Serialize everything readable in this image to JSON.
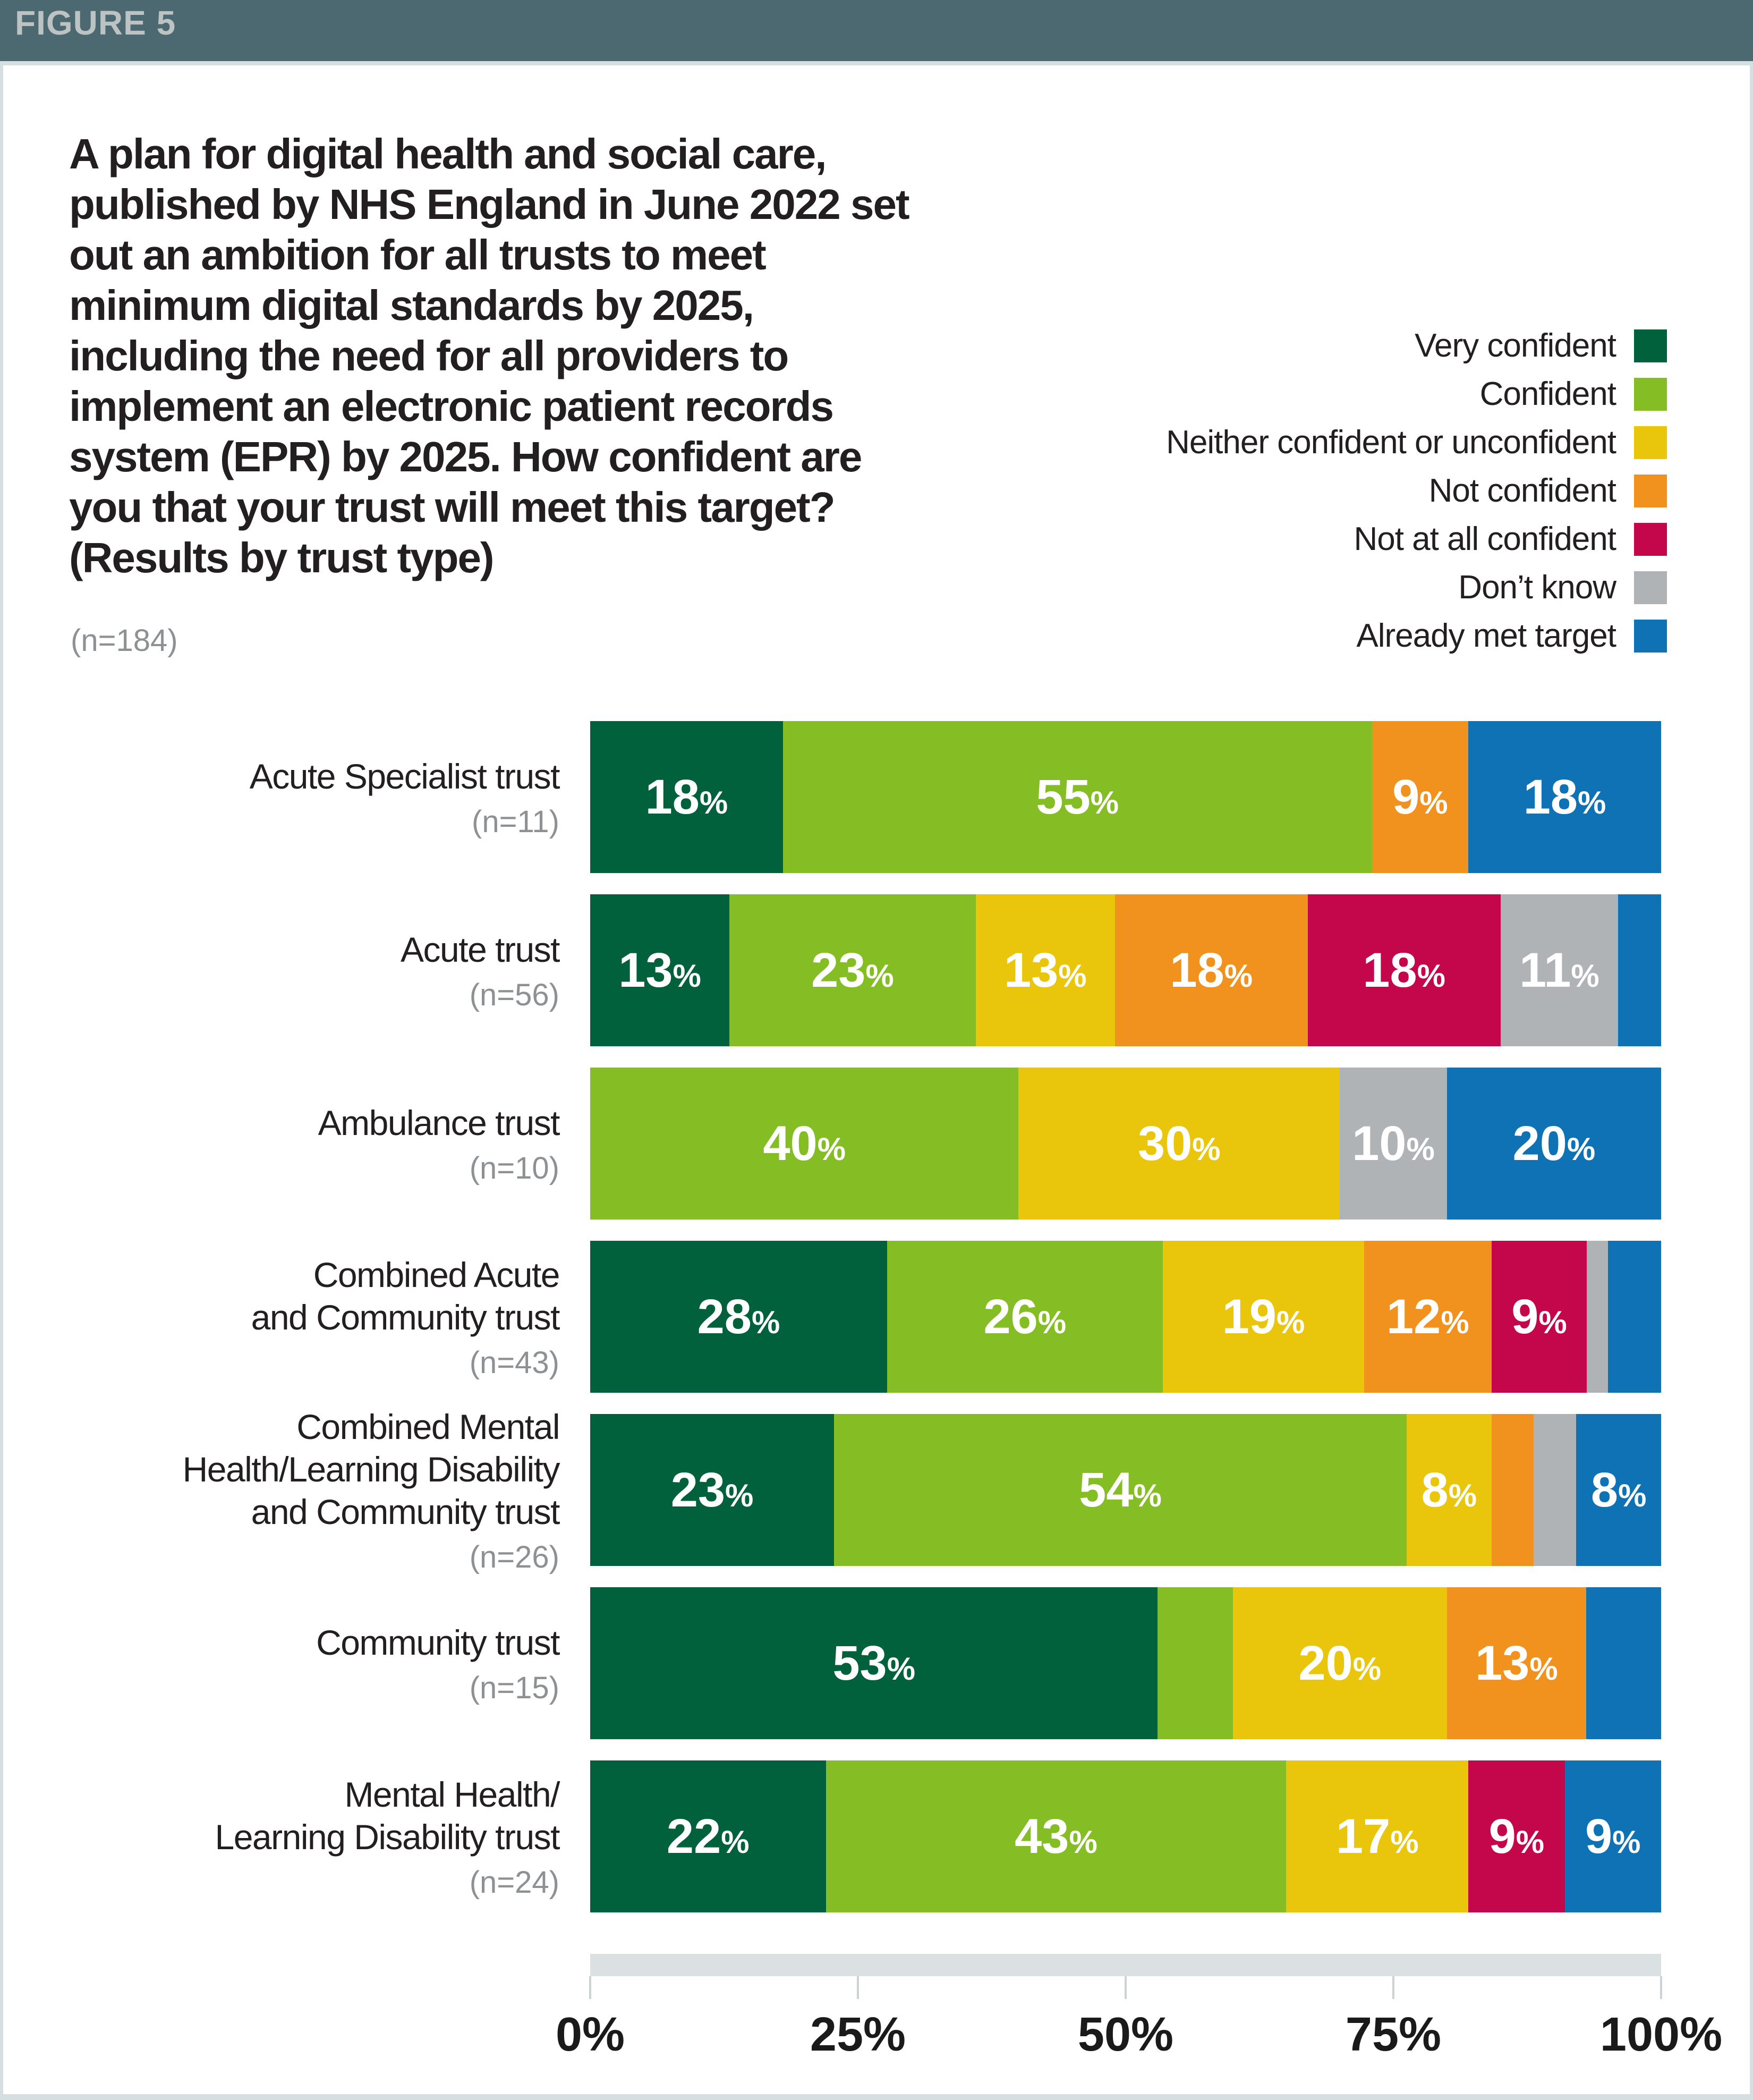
{
  "page": {
    "figure_label": "FIGURE 5",
    "header_bg": "#4C6971",
    "header_text_color": "#BDC2C3",
    "frame_color": "#D5DFE2"
  },
  "title": {
    "text": "A plan for digital health and social care,\npublished by NHS England in June 2022 set\nout an ambition for all trusts to meet\nminimum digital standards by 2025,\nincluding the need for all providers to\nimplement an electronic patient records\nsystem (EPR) by 2025. How confident are\nyou that your trust will meet this target?\n(Results by trust type)",
    "sample_size": "(n=184)"
  },
  "chart_data": {
    "type": "bar",
    "orientation": "horizontal",
    "stacked": true,
    "units": "%",
    "legend_position": "top-right",
    "x_axis": {
      "range": [
        0,
        100
      ],
      "ticks": [
        {
          "label": "0%",
          "value": 0
        },
        {
          "label": "25%",
          "value": 25
        },
        {
          "label": "50%",
          "value": 50
        },
        {
          "label": "75%",
          "value": 75
        },
        {
          "label": "100%",
          "value": 100
        }
      ]
    },
    "series": [
      {
        "name": "Very confident",
        "color": "#00613C"
      },
      {
        "name": "Confident",
        "color": "#85BD25"
      },
      {
        "name": "Neither confident or unconfident",
        "color": "#E9C50C"
      },
      {
        "name": "Not confident",
        "color": "#F2921E"
      },
      {
        "name": "Not at all confident",
        "color": "#C4074B"
      },
      {
        "name": "Don’t know",
        "color": "#B0B3B6"
      },
      {
        "name": "Already met target",
        "color": "#0E72B4"
      }
    ],
    "rows": [
      {
        "category": "Acute Specialist trust",
        "category_lines": "Acute Specialist trust",
        "n_label": "(n=11)",
        "segments": [
          {
            "series": "Very confident",
            "series_index": 0,
            "value": 18,
            "label": "18%"
          },
          {
            "series": "Confident",
            "series_index": 1,
            "value": 55,
            "label": "55%"
          },
          {
            "series": "Not confident",
            "series_index": 3,
            "value": 9,
            "label": "9%"
          },
          {
            "series": "Already met target",
            "series_index": 6,
            "value": 18,
            "label": "18%"
          }
        ]
      },
      {
        "category": "Acute trust",
        "category_lines": "Acute trust",
        "n_label": "(n=56)",
        "segments": [
          {
            "series": "Very confident",
            "series_index": 0,
            "value": 13,
            "label": "13%"
          },
          {
            "series": "Confident",
            "series_index": 1,
            "value": 23,
            "label": "23%"
          },
          {
            "series": "Neither confident or unconfident",
            "series_index": 2,
            "value": 13,
            "label": "13%"
          },
          {
            "series": "Not confident",
            "series_index": 3,
            "value": 18,
            "label": "18%"
          },
          {
            "series": "Not at all confident",
            "series_index": 4,
            "value": 18,
            "label": "18%"
          },
          {
            "series": "Don’t know",
            "series_index": 5,
            "value": 11,
            "label": "11%"
          },
          {
            "series": "Already met target",
            "series_index": 6,
            "value": 4,
            "label": null
          }
        ]
      },
      {
        "category": "Ambulance trust",
        "category_lines": "Ambulance trust",
        "n_label": "(n=10)",
        "segments": [
          {
            "series": "Confident",
            "series_index": 1,
            "value": 40,
            "label": "40%"
          },
          {
            "series": "Neither confident or unconfident",
            "series_index": 2,
            "value": 30,
            "label": "30%"
          },
          {
            "series": "Don’t know",
            "series_index": 5,
            "value": 10,
            "label": "10%"
          },
          {
            "series": "Already met target",
            "series_index": 6,
            "value": 20,
            "label": "20%"
          }
        ]
      },
      {
        "category": "Combined Acute and Community trust",
        "category_lines": "Combined Acute\nand Community trust",
        "n_label": "(n=43)",
        "segments": [
          {
            "series": "Very confident",
            "series_index": 0,
            "value": 28,
            "label": "28%"
          },
          {
            "series": "Confident",
            "series_index": 1,
            "value": 26,
            "label": "26%"
          },
          {
            "series": "Neither confident or unconfident",
            "series_index": 2,
            "value": 19,
            "label": "19%"
          },
          {
            "series": "Not confident",
            "series_index": 3,
            "value": 12,
            "label": "12%"
          },
          {
            "series": "Not at all confident",
            "series_index": 4,
            "value": 9,
            "label": "9%"
          },
          {
            "series": "Don’t know",
            "series_index": 5,
            "value": 2,
            "label": null
          },
          {
            "series": "Already met target",
            "series_index": 6,
            "value": 5,
            "label": null
          }
        ]
      },
      {
        "category": "Combined Mental Health/Learning Disability and Community trust",
        "category_lines": "Combined Mental\nHealth/Learning Disability\nand Community trust",
        "n_label": "(n=26)",
        "segments": [
          {
            "series": "Very confident",
            "series_index": 0,
            "value": 23,
            "label": "23%"
          },
          {
            "series": "Confident",
            "series_index": 1,
            "value": 54,
            "label": "54%"
          },
          {
            "series": "Neither confident or unconfident",
            "series_index": 2,
            "value": 8,
            "label": "8%"
          },
          {
            "series": "Not confident",
            "series_index": 3,
            "value": 4,
            "label": null
          },
          {
            "series": "Don’t know",
            "series_index": 5,
            "value": 4,
            "label": null
          },
          {
            "series": "Already met target",
            "series_index": 6,
            "value": 8,
            "label": "8%"
          }
        ]
      },
      {
        "category": "Community trust",
        "category_lines": "Community trust",
        "n_label": "(n=15)",
        "segments": [
          {
            "series": "Very confident",
            "series_index": 0,
            "value": 53,
            "label": "53%"
          },
          {
            "series": "Confident",
            "series_index": 1,
            "value": 7,
            "label": null
          },
          {
            "series": "Neither confident or unconfident",
            "series_index": 2,
            "value": 20,
            "label": "20%"
          },
          {
            "series": "Not confident",
            "series_index": 3,
            "value": 13,
            "label": "13%"
          },
          {
            "series": "Already met target",
            "series_index": 6,
            "value": 7,
            "label": null
          }
        ]
      },
      {
        "category": "Mental Health/Learning Disability trust",
        "category_lines": "Mental Health/\nLearning Disability trust",
        "n_label": "(n=24)",
        "segments": [
          {
            "series": "Very confident",
            "series_index": 0,
            "value": 22,
            "label": "22%"
          },
          {
            "series": "Confident",
            "series_index": 1,
            "value": 43,
            "label": "43%"
          },
          {
            "series": "Neither confident or unconfident",
            "series_index": 2,
            "value": 17,
            "label": "17%"
          },
          {
            "series": "Not at all confident",
            "series_index": 4,
            "value": 9,
            "label": "9%"
          },
          {
            "series": "Already met target",
            "series_index": 6,
            "value": 9,
            "label": "9%"
          }
        ]
      }
    ]
  }
}
